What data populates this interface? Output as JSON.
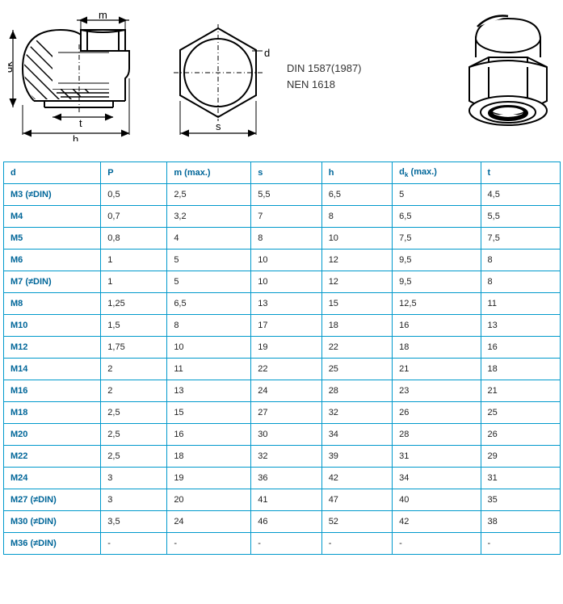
{
  "standards": {
    "line1": "DIN 1587(1987)",
    "line2": "NEN 1618"
  },
  "diagram": {
    "labels": {
      "m": "m",
      "dk": "dk",
      "d": "d",
      "h": "h",
      "t": "t",
      "s": "s"
    },
    "stroke_color": "#000000",
    "hatch_color": "#000000",
    "background_color": "#ffffff"
  },
  "table": {
    "border_color": "#0099cc",
    "header_color": "#006699",
    "cell_text_color": "#222222",
    "font_size": 11,
    "columns": [
      "d",
      "P",
      "m (max.)",
      "s",
      "h",
      "d_k (max.)",
      "t"
    ],
    "rows": [
      [
        "M3 (≠DIN)",
        "0,5",
        "2,5",
        "5,5",
        "6,5",
        "5",
        "4,5"
      ],
      [
        "M4",
        "0,7",
        "3,2",
        "7",
        "8",
        "6,5",
        "5,5"
      ],
      [
        "M5",
        "0,8",
        "4",
        "8",
        "10",
        "7,5",
        "7,5"
      ],
      [
        "M6",
        "1",
        "5",
        "10",
        "12",
        "9,5",
        "8"
      ],
      [
        "M7 (≠DIN)",
        "1",
        "5",
        "10",
        "12",
        "9,5",
        "8"
      ],
      [
        "M8",
        "1,25",
        "6,5",
        "13",
        "15",
        "12,5",
        "11"
      ],
      [
        "M10",
        "1,5",
        "8",
        "17",
        "18",
        "16",
        "13"
      ],
      [
        "M12",
        "1,75",
        "10",
        "19",
        "22",
        "18",
        "16"
      ],
      [
        "M14",
        "2",
        "11",
        "22",
        "25",
        "21",
        "18"
      ],
      [
        "M16",
        "2",
        "13",
        "24",
        "28",
        "23",
        "21"
      ],
      [
        "M18",
        "2,5",
        "15",
        "27",
        "32",
        "26",
        "25"
      ],
      [
        "M20",
        "2,5",
        "16",
        "30",
        "34",
        "28",
        "26"
      ],
      [
        "M22",
        "2,5",
        "18",
        "32",
        "39",
        "31",
        "29"
      ],
      [
        "M24",
        "3",
        "19",
        "36",
        "42",
        "34",
        "31"
      ],
      [
        "M27 (≠DIN)",
        "3",
        "20",
        "41",
        "47",
        "40",
        "35"
      ],
      [
        "M30 (≠DIN)",
        "3,5",
        "24",
        "46",
        "52",
        "42",
        "38"
      ],
      [
        "M36 (≠DIN)",
        "-",
        "-",
        "-",
        "-",
        "-",
        "-"
      ]
    ]
  }
}
